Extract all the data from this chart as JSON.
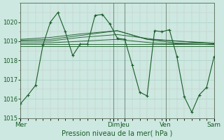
{
  "bg_color": "#cce8e0",
  "grid_color": "#aad0c8",
  "line_color": "#1a5c28",
  "xlabel": "Pression niveau de la mer( hPa )",
  "ylim": [
    1015.0,
    1021.0
  ],
  "yticks": [
    1015,
    1016,
    1017,
    1018,
    1019,
    1020
  ],
  "main_x": [
    0,
    1,
    2,
    3,
    4,
    5,
    6,
    7,
    8,
    9,
    10,
    11,
    12,
    13,
    14,
    15,
    16,
    17,
    18,
    19,
    20,
    21,
    22,
    23,
    24,
    25,
    26
  ],
  "main_y": [
    1015.75,
    1016.2,
    1016.7,
    1018.8,
    1020.0,
    1020.5,
    1019.5,
    1018.25,
    1018.85,
    1018.85,
    1020.35,
    1020.4,
    1019.9,
    1019.15,
    1019.1,
    1017.75,
    1016.35,
    1016.15,
    1019.55,
    1019.5,
    1019.6,
    1018.2,
    1016.1,
    1015.3,
    1016.2,
    1016.6,
    1018.2
  ],
  "flat_lines": [
    {
      "x": [
        0,
        26
      ],
      "y": [
        1018.75,
        1018.75
      ]
    },
    {
      "x": [
        0,
        26
      ],
      "y": [
        1018.85,
        1018.85
      ]
    },
    {
      "x": [
        0,
        4,
        8,
        13,
        18,
        26
      ],
      "y": [
        1018.9,
        1018.92,
        1019.0,
        1019.1,
        1018.9,
        1018.82
      ]
    },
    {
      "x": [
        0,
        4,
        8,
        13,
        18,
        26
      ],
      "y": [
        1019.0,
        1019.02,
        1019.2,
        1019.35,
        1019.1,
        1018.87
      ]
    },
    {
      "x": [
        0,
        4,
        8,
        13,
        17,
        26
      ],
      "y": [
        1019.05,
        1019.1,
        1019.3,
        1019.55,
        1019.1,
        1018.9
      ]
    },
    {
      "x": [
        0,
        4,
        8,
        13,
        17,
        21,
        26
      ],
      "y": [
        1019.1,
        1019.2,
        1019.38,
        1019.55,
        1019.1,
        1018.9,
        1018.9
      ]
    }
  ],
  "day_x": [
    0,
    12.5,
    14.0,
    19.5,
    26
  ],
  "day_labels": [
    "Mer",
    "Dim",
    "Jeu",
    "Ven",
    "Sam"
  ],
  "vline_x": [
    0,
    12.5,
    14.0,
    19.5,
    26
  ],
  "xlim": [
    0,
    26
  ],
  "n_x_minor": 26
}
